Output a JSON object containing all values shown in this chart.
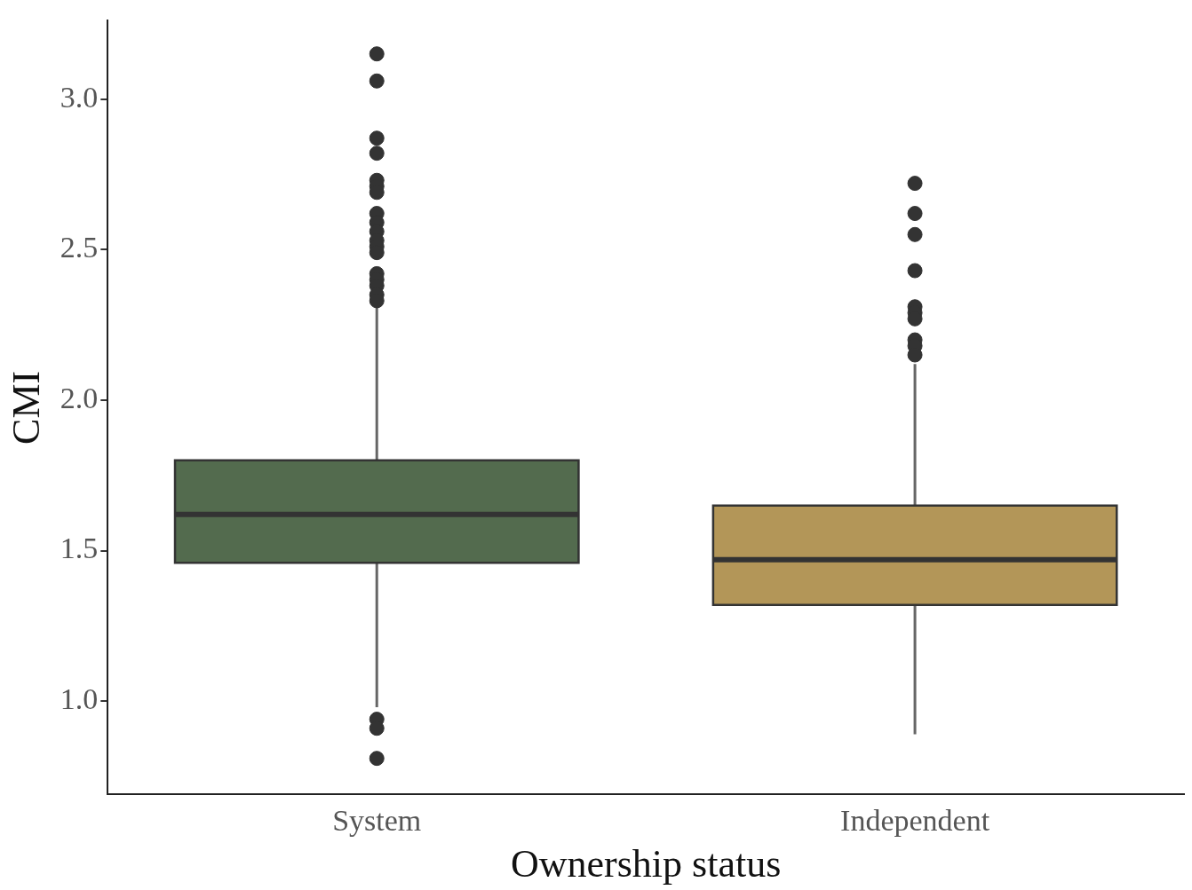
{
  "chart_data": {
    "type": "box",
    "xlabel": "Ownership status",
    "ylabel": "CMI",
    "categories": [
      "System",
      "Independent"
    ],
    "colors": [
      "#536b4e",
      "#b39658"
    ],
    "boxes": [
      {
        "low": 0.98,
        "q1": 1.46,
        "median": 1.62,
        "q3": 1.8,
        "high": 2.32,
        "outliers": [
          3.15,
          3.06,
          2.87,
          2.82,
          2.73,
          2.71,
          2.69,
          2.62,
          2.59,
          2.56,
          2.53,
          2.51,
          2.49,
          2.42,
          2.4,
          2.38,
          2.35,
          2.33,
          0.94,
          0.91,
          0.81
        ]
      },
      {
        "low": 0.89,
        "q1": 1.32,
        "median": 1.47,
        "q3": 1.65,
        "high": 2.12,
        "outliers": [
          2.72,
          2.62,
          2.55,
          2.43,
          2.31,
          2.29,
          2.27,
          2.2,
          2.18,
          2.15
        ]
      }
    ],
    "ylim": [
      0.69,
      3.26
    ],
    "yticks": [
      {
        "value": 1,
        "label": "1.0"
      },
      {
        "value": 1.5,
        "label": "1.5"
      },
      {
        "value": 2,
        "label": "2.0"
      },
      {
        "value": 2.5,
        "label": "2.5"
      },
      {
        "value": 3,
        "label": "3.0"
      }
    ],
    "grid": false,
    "legend": false,
    "marker": "circle"
  }
}
